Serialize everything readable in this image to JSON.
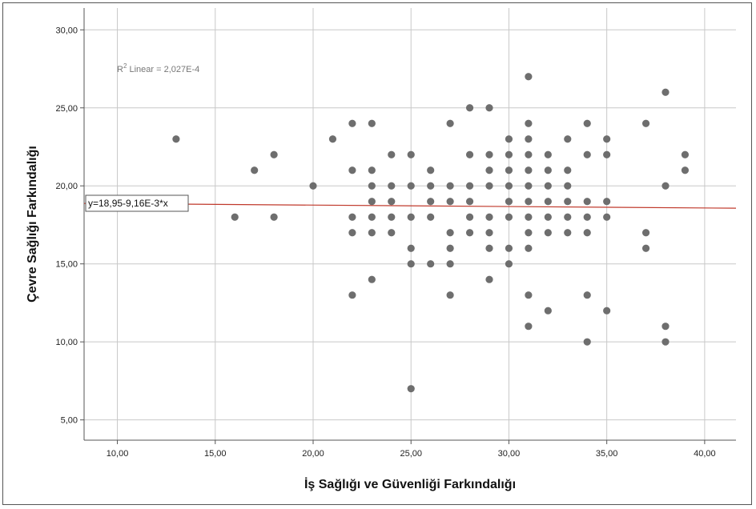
{
  "chart_data": {
    "type": "scatter",
    "xlabel": "İş Sağlığı ve Güvenliği Farkındalığı",
    "ylabel": "Çevre Sağlığı Farkındalığı",
    "xlim": [
      8.3,
      41.6
    ],
    "ylim": [
      3.7,
      31.4
    ],
    "x_ticks": [
      "10,00",
      "15,00",
      "20,00",
      "25,00",
      "30,00",
      "35,00",
      "40,00"
    ],
    "x_tick_values": [
      10,
      15,
      20,
      25,
      30,
      35,
      40
    ],
    "y_ticks": [
      "5,00",
      "10,00",
      "15,00",
      "20,00",
      "25,00",
      "30,00"
    ],
    "y_tick_values": [
      5,
      10,
      15,
      20,
      25,
      30
    ],
    "grid": true,
    "r2_prefix": "R",
    "r2_sup": "2",
    "r2_text": " Linear = 2,027E-4",
    "fit_equation": "y=18,95-9,16E-3*x",
    "fit_intercept": 18.95,
    "fit_slope": -0.00916,
    "point_color": "#6e6e6e",
    "fit_color": "#c0392b",
    "points": [
      [
        13,
        23
      ],
      [
        16,
        18
      ],
      [
        17,
        21
      ],
      [
        18,
        22
      ],
      [
        18,
        18
      ],
      [
        20,
        20
      ],
      [
        21,
        23
      ],
      [
        22,
        24
      ],
      [
        22,
        21
      ],
      [
        22,
        18
      ],
      [
        22,
        17
      ],
      [
        22,
        13
      ],
      [
        23,
        24
      ],
      [
        23,
        21
      ],
      [
        23,
        20
      ],
      [
        23,
        19
      ],
      [
        23,
        18
      ],
      [
        23,
        17
      ],
      [
        23,
        14
      ],
      [
        24,
        22
      ],
      [
        24,
        20
      ],
      [
        24,
        19
      ],
      [
        24,
        18
      ],
      [
        24,
        17
      ],
      [
        25,
        22
      ],
      [
        25,
        20
      ],
      [
        25,
        18
      ],
      [
        25,
        16
      ],
      [
        25,
        15
      ],
      [
        25,
        7
      ],
      [
        26,
        21
      ],
      [
        26,
        20
      ],
      [
        26,
        19
      ],
      [
        26,
        18
      ],
      [
        26,
        15
      ],
      [
        27,
        24
      ],
      [
        27,
        20
      ],
      [
        27,
        19
      ],
      [
        27,
        17
      ],
      [
        27,
        16
      ],
      [
        27,
        15
      ],
      [
        27,
        13
      ],
      [
        28,
        25
      ],
      [
        28,
        22
      ],
      [
        28,
        20
      ],
      [
        28,
        19
      ],
      [
        28,
        18
      ],
      [
        28,
        17
      ],
      [
        29,
        25
      ],
      [
        29,
        22
      ],
      [
        29,
        21
      ],
      [
        29,
        20
      ],
      [
        29,
        18
      ],
      [
        29,
        17
      ],
      [
        29,
        16
      ],
      [
        29,
        14
      ],
      [
        30,
        23
      ],
      [
        30,
        22
      ],
      [
        30,
        21
      ],
      [
        30,
        20
      ],
      [
        30,
        19
      ],
      [
        30,
        18
      ],
      [
        30,
        16
      ],
      [
        30,
        15
      ],
      [
        31,
        27
      ],
      [
        31,
        24
      ],
      [
        31,
        23
      ],
      [
        31,
        22
      ],
      [
        31,
        21
      ],
      [
        31,
        20
      ],
      [
        31,
        19
      ],
      [
        31,
        18
      ],
      [
        31,
        17
      ],
      [
        31,
        16
      ],
      [
        31,
        13
      ],
      [
        31,
        11
      ],
      [
        32,
        22
      ],
      [
        32,
        21
      ],
      [
        32,
        20
      ],
      [
        32,
        19
      ],
      [
        32,
        18
      ],
      [
        32,
        17
      ],
      [
        32,
        12
      ],
      [
        33,
        23
      ],
      [
        33,
        21
      ],
      [
        33,
        20
      ],
      [
        33,
        19
      ],
      [
        33,
        18
      ],
      [
        33,
        17
      ],
      [
        34,
        24
      ],
      [
        34,
        22
      ],
      [
        34,
        19
      ],
      [
        34,
        18
      ],
      [
        34,
        17
      ],
      [
        34,
        13
      ],
      [
        34,
        10
      ],
      [
        35,
        23
      ],
      [
        35,
        22
      ],
      [
        35,
        19
      ],
      [
        35,
        18
      ],
      [
        35,
        12
      ],
      [
        37,
        24
      ],
      [
        37,
        17
      ],
      [
        37,
        16
      ],
      [
        38,
        26
      ],
      [
        38,
        20
      ],
      [
        38,
        11
      ],
      [
        38,
        10
      ],
      [
        39,
        22
      ],
      [
        39,
        21
      ]
    ]
  }
}
